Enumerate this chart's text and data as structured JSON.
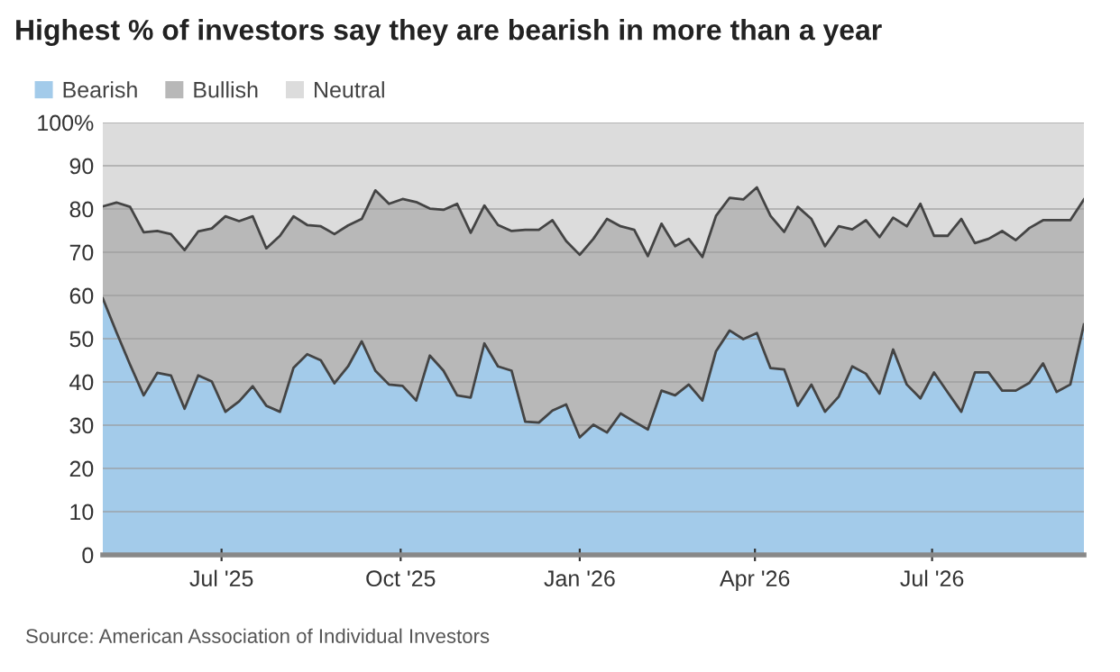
{
  "chart_data": {
    "type": "area",
    "stacked": true,
    "title": "Highest % of investors say they are bearish in more than a year",
    "annotations": [
      "Source: American Association of Individual Investors"
    ],
    "x": [
      "2025-05-01",
      "2025-05-08",
      "2025-05-15",
      "2025-05-22",
      "2025-05-29",
      "2025-06-05",
      "2025-06-12",
      "2025-06-19",
      "2025-06-26",
      "2025-07-03",
      "2025-07-10",
      "2025-07-17",
      "2025-07-24",
      "2025-07-31",
      "2025-08-07",
      "2025-08-14",
      "2025-08-21",
      "2025-08-28",
      "2025-09-04",
      "2025-09-11",
      "2025-09-18",
      "2025-09-25",
      "2025-10-02",
      "2025-10-09",
      "2025-10-16",
      "2025-10-23",
      "2025-10-30",
      "2025-11-06",
      "2025-11-13",
      "2025-11-20",
      "2025-11-27",
      "2025-12-04",
      "2025-12-11",
      "2025-12-18",
      "2025-12-25",
      "2026-01-01",
      "2026-01-08",
      "2026-01-15",
      "2026-01-22",
      "2026-01-29",
      "2026-02-05",
      "2026-02-12",
      "2026-02-19",
      "2026-02-26",
      "2026-03-05",
      "2026-03-12",
      "2026-03-19",
      "2026-03-26",
      "2026-04-02",
      "2026-04-09",
      "2026-04-16",
      "2026-04-23",
      "2026-04-30",
      "2026-05-07",
      "2026-05-14",
      "2026-05-21",
      "2026-05-28",
      "2026-06-04",
      "2026-06-11",
      "2026-06-18",
      "2026-06-25",
      "2026-07-02",
      "2026-07-09",
      "2026-07-16",
      "2026-07-23",
      "2026-07-30",
      "2026-08-06",
      "2026-08-13",
      "2026-08-20",
      "2026-08-27",
      "2026-09-03",
      "2026-09-10",
      "2026-09-17"
    ],
    "series": [
      {
        "name": "Bearish",
        "color": "#a3cbea",
        "values": [
          59.3,
          51.5,
          44.0,
          36.9,
          42.1,
          41.5,
          33.8,
          41.5,
          40.1,
          33.1,
          35.5,
          39.0,
          34.5,
          33.1,
          43.3,
          46.4,
          45.0,
          39.7,
          43.6,
          49.4,
          42.6,
          39.4,
          39.1,
          35.7,
          46.1,
          42.6,
          36.9,
          36.4,
          48.9,
          43.6,
          42.6,
          30.8,
          30.6,
          33.4,
          34.8,
          27.2,
          30.1,
          28.3,
          32.7,
          30.8,
          29.0,
          38.0,
          36.9,
          39.4,
          35.7,
          47.1,
          51.9,
          49.9,
          51.3,
          43.2,
          42.9,
          34.5,
          39.4,
          33.1,
          36.6,
          43.6,
          41.9,
          37.3,
          47.5,
          39.4,
          36.2,
          42.2,
          37.6,
          33.1,
          42.2,
          42.2,
          38.0,
          38.0,
          39.8,
          44.3,
          37.7,
          39.4,
          53.3
        ]
      },
      {
        "name": "Bullish",
        "color": "#b8b8b8",
        "values": [
          21.3,
          30.0,
          36.5,
          37.7,
          32.8,
          32.7,
          36.7,
          33.3,
          35.4,
          45.2,
          41.7,
          39.3,
          36.4,
          40.7,
          35.0,
          29.9,
          31.0,
          34.5,
          32.6,
          28.3,
          41.7,
          41.8,
          43.2,
          45.9,
          34.0,
          37.2,
          44.3,
          38.1,
          31.9,
          32.7,
          32.3,
          44.4,
          44.6,
          44.0,
          37.8,
          42.2,
          43.0,
          49.4,
          43.3,
          44.4,
          40.1,
          38.6,
          34.5,
          33.7,
          33.2,
          31.3,
          30.7,
          32.3,
          33.7,
          35.2,
          31.8,
          46.0,
          38.3,
          38.3,
          39.4,
          31.7,
          35.5,
          36.2,
          30.5,
          36.6,
          45.0,
          31.6,
          36.2,
          44.6,
          29.9,
          30.9,
          36.9,
          34.8,
          35.8,
          33.1,
          39.7,
          38.0,
          28.9
        ]
      },
      {
        "name": "Neutral",
        "color": "#dcdcdc",
        "values": [
          19.4,
          18.5,
          19.5,
          25.4,
          25.1,
          25.8,
          29.5,
          25.2,
          24.5,
          21.7,
          22.8,
          21.7,
          29.1,
          26.2,
          21.7,
          23.7,
          24.0,
          25.8,
          23.8,
          22.3,
          15.7,
          18.8,
          17.7,
          18.4,
          19.9,
          20.2,
          18.8,
          25.5,
          19.2,
          23.7,
          25.1,
          24.8,
          24.8,
          22.6,
          27.4,
          30.6,
          26.9,
          22.3,
          24.0,
          24.8,
          30.9,
          23.4,
          28.6,
          26.9,
          31.1,
          21.6,
          17.4,
          17.8,
          15.0,
          21.6,
          25.3,
          19.5,
          22.3,
          28.6,
          24.0,
          24.7,
          22.6,
          26.5,
          22.0,
          24.0,
          18.8,
          26.2,
          26.2,
          22.3,
          27.9,
          26.9,
          25.1,
          27.2,
          24.4,
          22.6,
          22.6,
          22.6,
          17.8
        ]
      }
    ],
    "xlim": [
      "2025-05-01",
      "2026-09-17"
    ],
    "xticks": [
      {
        "value": "2025-07-01",
        "label": "Jul '25"
      },
      {
        "value": "2025-10-01",
        "label": "Oct '25"
      },
      {
        "value": "2026-01-01",
        "label": "Jan '26"
      },
      {
        "value": "2026-04-01",
        "label": "Apr '26"
      },
      {
        "value": "2026-07-01",
        "label": "Jul '26"
      }
    ],
    "ylim": [
      0,
      100
    ],
    "yticks": [
      0,
      10,
      20,
      30,
      40,
      50,
      60,
      70,
      80,
      90,
      {
        "value": 100,
        "label": "100%"
      }
    ],
    "grid": "y",
    "legend": "top left"
  }
}
